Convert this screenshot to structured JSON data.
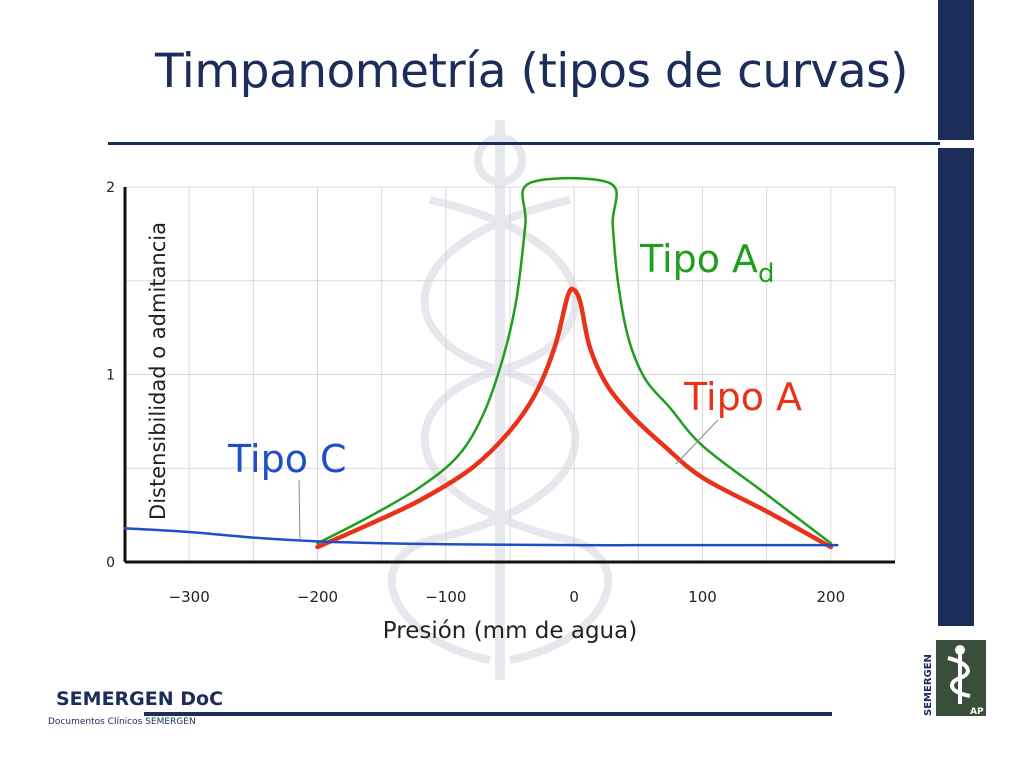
{
  "slide": {
    "title": "Timpanometría (tipos de curvas)",
    "footer_logo": "SEMERGEN DoC",
    "footer_subtitle": "Documentos Clínicos SEMERGEN",
    "badge_text": "SEMERGEN",
    "badge_sub": "AP"
  },
  "colors": {
    "navy": "#1c2d5a",
    "tipo_a": "#e8331a",
    "tipo_ad": "#1f9e1f",
    "tipo_c": "#1f4fc8",
    "grid": "#d8d8d8"
  },
  "chart_data": {
    "type": "line",
    "xlabel": "Presión (mm de agua)",
    "ylabel": "Distensibilidad o admitancia",
    "xlim": [
      -350,
      250
    ],
    "ylim": [
      0,
      2
    ],
    "xticks": [
      -300,
      -200,
      -100,
      0,
      100,
      200
    ],
    "xtick_labels": [
      "−300",
      "−200",
      "−100",
      "0",
      "100",
      "200"
    ],
    "yticks": [
      0,
      1,
      2
    ],
    "ytick_labels": [
      "0",
      "1",
      "2"
    ],
    "grid": true,
    "series": [
      {
        "name": "Tipo A",
        "label_main": "Tipo A",
        "label_sub": "",
        "color": "#e8331a",
        "points": [
          [
            -200,
            0.08
          ],
          [
            -160,
            0.2
          ],
          [
            -120,
            0.33
          ],
          [
            -80,
            0.5
          ],
          [
            -50,
            0.7
          ],
          [
            -30,
            0.9
          ],
          [
            -15,
            1.15
          ],
          [
            -5,
            1.42
          ],
          [
            0,
            1.45
          ],
          [
            5,
            1.38
          ],
          [
            12,
            1.15
          ],
          [
            25,
            0.95
          ],
          [
            45,
            0.78
          ],
          [
            70,
            0.62
          ],
          [
            100,
            0.45
          ],
          [
            150,
            0.27
          ],
          [
            200,
            0.08
          ]
        ]
      },
      {
        "name": "Tipo Ad",
        "label_main": "Tipo A",
        "label_sub": "d",
        "color": "#1f9e1f",
        "points": [
          [
            -200,
            0.1
          ],
          [
            -160,
            0.24
          ],
          [
            -120,
            0.4
          ],
          [
            -90,
            0.57
          ],
          [
            -70,
            0.8
          ],
          [
            -55,
            1.1
          ],
          [
            -45,
            1.4
          ],
          [
            -38,
            1.8
          ],
          [
            -35,
            2.02
          ],
          [
            28,
            2.02
          ],
          [
            30,
            1.8
          ],
          [
            34,
            1.5
          ],
          [
            42,
            1.2
          ],
          [
            55,
            0.98
          ],
          [
            75,
            0.82
          ],
          [
            100,
            0.62
          ],
          [
            150,
            0.36
          ],
          [
            200,
            0.1
          ]
        ]
      },
      {
        "name": "Tipo C",
        "label_main": "Tipo C",
        "label_sub": "",
        "color": "#1f4fc8",
        "points": [
          [
            -350,
            0.18
          ],
          [
            -300,
            0.16
          ],
          [
            -250,
            0.13
          ],
          [
            -200,
            0.11
          ],
          [
            -150,
            0.1
          ],
          [
            -100,
            0.095
          ],
          [
            0,
            0.09
          ],
          [
            100,
            0.09
          ],
          [
            205,
            0.09
          ]
        ]
      }
    ]
  }
}
